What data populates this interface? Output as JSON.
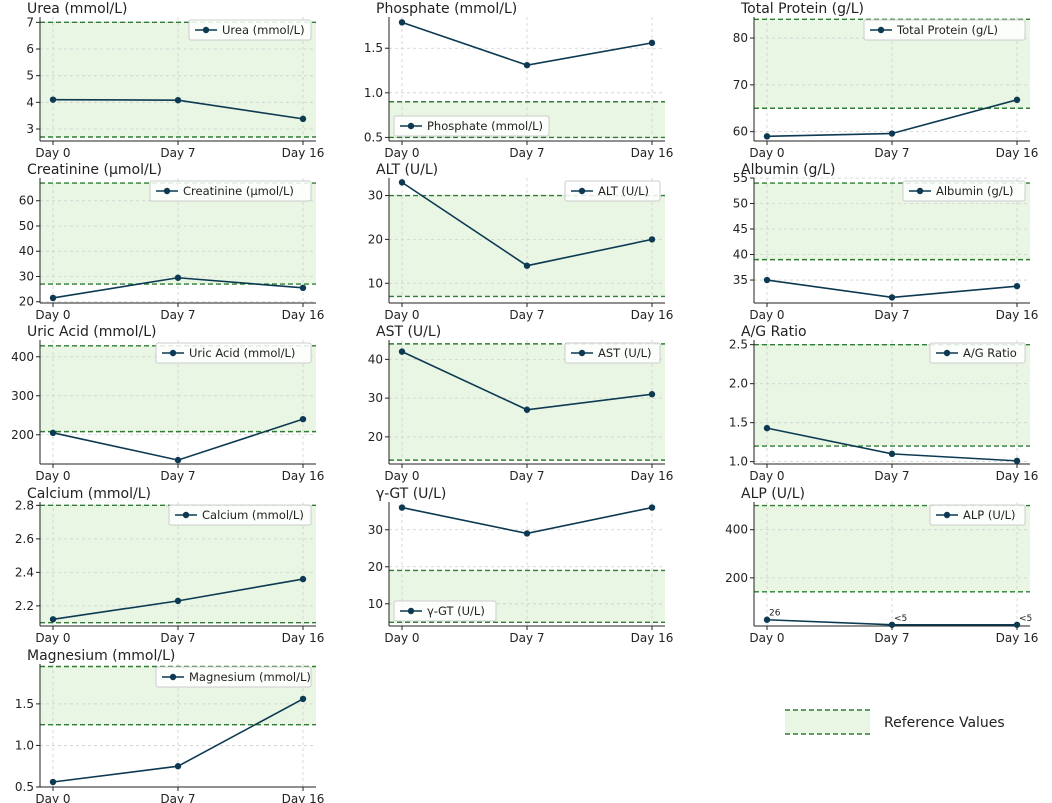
{
  "colors": {
    "line": "#0d3a52",
    "ref_fill": "#e8f6e3",
    "ref_line": "#2e7d32",
    "grid": "#cfcfcf",
    "axis": "#222222"
  },
  "reference_legend": {
    "label": "Reference Values"
  },
  "chart_data": [
    {
      "id": "urea",
      "type": "line",
      "title": "Urea (mmol/L)",
      "categories": [
        "Day 0",
        "Day 7",
        "Day 16"
      ],
      "values": [
        4.1,
        4.08,
        3.38
      ],
      "ref": [
        2.7,
        7.0
      ],
      "ylim": [
        2.55,
        7.2
      ],
      "yticks": [
        3,
        4,
        5,
        6,
        7
      ],
      "legend": "Urea (mmol/L)",
      "legend_loc": "top-right"
    },
    {
      "id": "phosphate",
      "type": "line",
      "title": "Phosphate (mmol/L)",
      "categories": [
        "Day 0",
        "Day 7",
        "Day 16"
      ],
      "values": [
        1.79,
        1.31,
        1.56
      ],
      "ref": [
        0.5,
        0.9
      ],
      "ylim": [
        0.46,
        1.85
      ],
      "yticks": [
        0.5,
        1.0,
        1.5
      ],
      "ytick_labels": [
        "0.5",
        "1.0",
        "1.5"
      ],
      "legend": "Phosphate (mmol/L)",
      "legend_loc": "bottom-left"
    },
    {
      "id": "total_protein",
      "type": "line",
      "title": "Total Protein (g/L)",
      "categories": [
        "Day 0",
        "Day 7",
        "Day 16"
      ],
      "values": [
        59,
        59.6,
        66.8
      ],
      "ref": [
        65,
        84
      ],
      "ylim": [
        58,
        84.5
      ],
      "yticks": [
        60,
        70,
        80
      ],
      "legend": "Total Protein (g/L)",
      "legend_loc": "top-right"
    },
    {
      "id": "creatinine",
      "type": "line",
      "title": "Creatinine (µmol/L)",
      "categories": [
        "Day 0",
        "Day 7",
        "Day 16"
      ],
      "values": [
        21.5,
        29.5,
        25.5
      ],
      "ref": [
        27,
        67
      ],
      "ylim": [
        19.5,
        69
      ],
      "yticks": [
        20,
        30,
        40,
        50,
        60
      ],
      "legend": "Creatinine (µmol/L)",
      "legend_loc": "top-right"
    },
    {
      "id": "alt",
      "type": "line",
      "title": "ALT (U/L)",
      "categories": [
        "Day 0",
        "Day 7",
        "Day 16"
      ],
      "values": [
        33,
        14,
        20
      ],
      "ref": [
        7,
        30
      ],
      "ylim": [
        5.5,
        34
      ],
      "yticks": [
        10,
        20,
        30
      ],
      "legend": "ALT (U/L)",
      "legend_loc": "top-right"
    },
    {
      "id": "albumin",
      "type": "line",
      "title": "Albumin (g/L)",
      "categories": [
        "Day 0",
        "Day 7",
        "Day 16"
      ],
      "values": [
        35,
        31.6,
        33.8
      ],
      "ref": [
        39,
        54
      ],
      "ylim": [
        30.5,
        55
      ],
      "yticks": [
        35,
        40,
        45,
        50,
        55
      ],
      "legend": "Albumin (g/L)",
      "legend_loc": "top-right"
    },
    {
      "id": "uric_acid",
      "type": "line",
      "title": "Uric Acid (mmol/L)",
      "categories": [
        "Day 0",
        "Day 7",
        "Day 16"
      ],
      "values": [
        205,
        135,
        240
      ],
      "ref": [
        208,
        428
      ],
      "ylim": [
        125,
        443
      ],
      "yticks": [
        200,
        300,
        400
      ],
      "legend": "Uric Acid (mmol/L)",
      "legend_loc": "top-right"
    },
    {
      "id": "ast",
      "type": "line",
      "title": "AST (U/L)",
      "categories": [
        "Day 0",
        "Day 7",
        "Day 16"
      ],
      "values": [
        42,
        27,
        31
      ],
      "ref": [
        14,
        44
      ],
      "ylim": [
        13,
        45
      ],
      "yticks": [
        20,
        30,
        40
      ],
      "legend": "AST (U/L)",
      "legend_loc": "top-right"
    },
    {
      "id": "ag_ratio",
      "type": "line",
      "title": "A/G Ratio",
      "categories": [
        "Day 0",
        "Day 7",
        "Day 16"
      ],
      "values": [
        1.43,
        1.1,
        1.01
      ],
      "ref": [
        1.2,
        2.5
      ],
      "ylim": [
        0.97,
        2.56
      ],
      "yticks": [
        1.0,
        1.5,
        2.0,
        2.5
      ],
      "ytick_labels": [
        "1.0",
        "1.5",
        "2.0",
        "2.5"
      ],
      "legend": "A/G Ratio",
      "legend_loc": "top-right"
    },
    {
      "id": "calcium",
      "type": "line",
      "title": "Calcium (mmol/L)",
      "categories": [
        "Day 0",
        "Day 7",
        "Day 16"
      ],
      "values": [
        2.12,
        2.23,
        2.36
      ],
      "ref": [
        2.1,
        2.8
      ],
      "ylim": [
        2.08,
        2.82
      ],
      "yticks": [
        2.2,
        2.4,
        2.6,
        2.8
      ],
      "ytick_labels": [
        "2.2",
        "2.4",
        "2.6",
        "2.8"
      ],
      "legend": "Calcium (mmol/L)",
      "legend_loc": "top-right"
    },
    {
      "id": "ggt",
      "type": "line",
      "title": "γ-GT (U/L)",
      "categories": [
        "Day 0",
        "Day 7",
        "Day 16"
      ],
      "values": [
        36,
        29,
        36
      ],
      "ref": [
        5,
        19
      ],
      "ylim": [
        4,
        37.5
      ],
      "yticks": [
        10,
        20,
        30
      ],
      "legend": "γ-GT (U/L)",
      "legend_loc": "bottom-left"
    },
    {
      "id": "alp",
      "type": "line",
      "title": "ALP (U/L)",
      "categories": [
        "Day 0",
        "Day 7",
        "Day 16"
      ],
      "values": [
        26,
        5,
        5
      ],
      "ref": [
        142,
        500
      ],
      "ylim": [
        0,
        515
      ],
      "yticks": [
        200,
        400
      ],
      "legend": "ALP (U/L)",
      "legend_loc": "top-right",
      "annotations": [
        "26",
        "<5",
        "<5"
      ]
    },
    {
      "id": "magnesium",
      "type": "line",
      "title": "Magnesium (mmol/L)",
      "categories": [
        "Day 0",
        "Day 7",
        "Day 16"
      ],
      "values": [
        0.56,
        0.75,
        1.56
      ],
      "ref": [
        1.25,
        1.95
      ],
      "ylim": [
        0.5,
        1.98
      ],
      "yticks": [
        0.5,
        1.0,
        1.5
      ],
      "ytick_labels": [
        "0.5",
        "1.0",
        "1.5"
      ],
      "legend": "Magnesium (mmol/L)",
      "legend_loc": "top-right"
    }
  ]
}
